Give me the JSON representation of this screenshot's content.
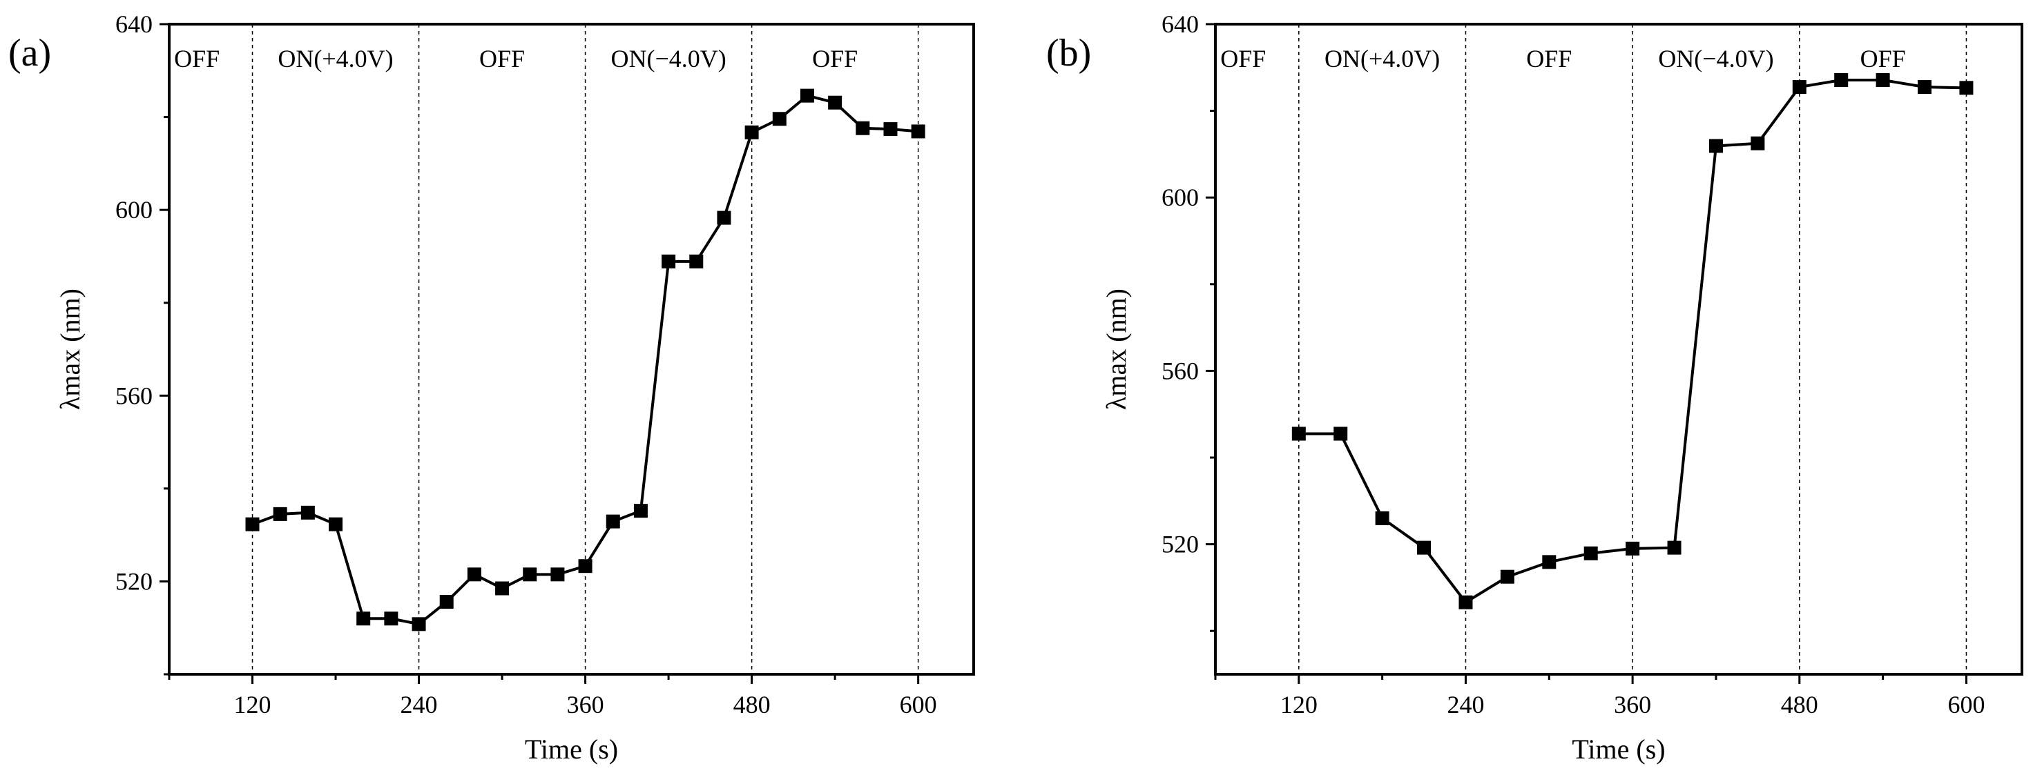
{
  "chart_data": [
    {
      "type": "line",
      "panel_label": "(a)",
      "xlabel": "Time (s)",
      "ylabel": "λmax (nm)",
      "xlim": [
        60,
        640
      ],
      "ylim": [
        500,
        640
      ],
      "xticks": [
        120,
        240,
        360,
        480,
        600
      ],
      "yticks": [
        520,
        560,
        600,
        640
      ],
      "dividers": [
        120,
        240,
        360,
        480,
        600
      ],
      "regions": [
        {
          "label": "OFF",
          "x": 80
        },
        {
          "label": "ON(+4.0V)",
          "x": 180
        },
        {
          "label": "OFF",
          "x": 300
        },
        {
          "label": "ON(−4.0V)",
          "x": 420
        },
        {
          "label": "OFF",
          "x": 540
        }
      ],
      "series": [
        {
          "x": [
            120,
            140,
            160,
            180,
            200,
            220,
            240,
            260,
            280,
            300,
            320,
            340,
            360,
            380,
            400,
            420,
            440,
            460,
            480,
            500,
            520,
            540,
            560,
            580,
            600
          ],
          "y": [
            532.3,
            534.5,
            534.8,
            532.3,
            512.0,
            512.0,
            510.8,
            515.6,
            521.5,
            518.5,
            521.5,
            521.5,
            523.3,
            532.9,
            535.2,
            588.9,
            588.9,
            598.3,
            616.7,
            619.6,
            624.6,
            623.1,
            617.6,
            617.4,
            616.9
          ]
        }
      ]
    },
    {
      "type": "line",
      "panel_label": "(b)",
      "xlabel": "Time (s)",
      "ylabel": "λmax (nm)",
      "xlim": [
        60,
        640
      ],
      "ylim": [
        490,
        640
      ],
      "xticks": [
        120,
        240,
        360,
        480,
        600
      ],
      "yticks": [
        520,
        560,
        600,
        640
      ],
      "dividers": [
        120,
        240,
        360,
        480,
        600
      ],
      "regions": [
        {
          "label": "OFF",
          "x": 80
        },
        {
          "label": "ON(+4.0V)",
          "x": 180
        },
        {
          "label": "OFF",
          "x": 300
        },
        {
          "label": "ON(−4.0V)",
          "x": 420
        },
        {
          "label": "OFF",
          "x": 540
        }
      ],
      "series": [
        {
          "x": [
            120,
            150,
            180,
            210,
            240,
            270,
            300,
            330,
            360,
            390,
            420,
            450,
            480,
            510,
            540,
            570,
            600
          ],
          "y": [
            545.5,
            545.5,
            526.0,
            519.2,
            506.6,
            512.5,
            515.9,
            517.9,
            519.0,
            519.2,
            611.9,
            612.5,
            625.5,
            627.1,
            627.1,
            625.5,
            625.3
          ]
        }
      ]
    }
  ]
}
